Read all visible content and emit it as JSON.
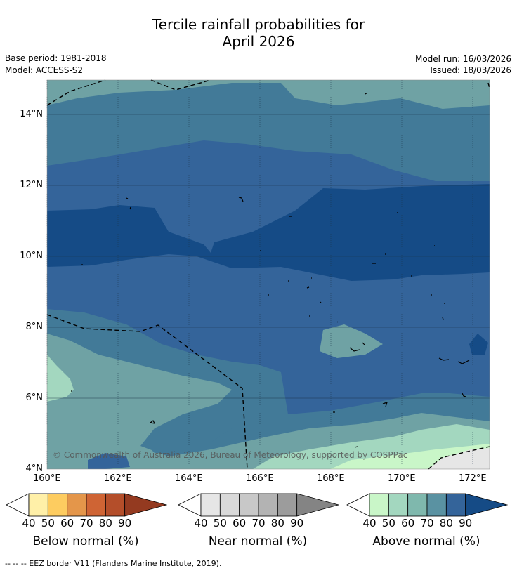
{
  "header": {
    "title_line1": "Tercile rainfall probabilities for",
    "title_line2": "April 2026",
    "base_period": "Base period: 1981-2018",
    "model": "Model: ACCESS-S2",
    "model_run": "Model run: 16/03/2026",
    "issued": "Issued: 18/03/2026"
  },
  "map": {
    "lat_labels": [
      "14°N",
      "12°N",
      "10°N",
      "8°N",
      "6°N",
      "4°N"
    ],
    "lon_labels": [
      "160°E",
      "162°E",
      "164°E",
      "166°E",
      "168°E",
      "170°E",
      "172°E"
    ],
    "copyright": "© Commonwealth of Australia 2026, Bureau of Meteorology, supported by COSPPac"
  },
  "legends": [
    {
      "title": "Below normal (%)",
      "ticks": [
        "40",
        "50",
        "60",
        "70",
        "80",
        "90"
      ],
      "colors": [
        "#fff0a8",
        "#fdcc60",
        "#e4964a",
        "#cf6434",
        "#b44e2a",
        "#943a20"
      ],
      "low_color": "#ffffff"
    },
    {
      "title": "Near normal (%)",
      "ticks": [
        "40",
        "50",
        "60",
        "70",
        "80",
        "90"
      ],
      "colors": [
        "#e6e6e6",
        "#d9d9d9",
        "#c8c8c8",
        "#b3b3b3",
        "#9c9c9c",
        "#848484"
      ],
      "low_color": "#ffffff"
    },
    {
      "title": "Above normal (%)",
      "ticks": [
        "40",
        "50",
        "60",
        "70",
        "80",
        "90"
      ],
      "colors": [
        "#c9f6c8",
        "#a3d7bf",
        "#7fb8ad",
        "#5a92a2",
        "#34649a",
        "#154b86"
      ],
      "low_color": "#ffffff"
    }
  ],
  "footer": {
    "eez_note": "--  --  -- EEZ border V11 (Flanders Marine Institute, 2019)."
  }
}
